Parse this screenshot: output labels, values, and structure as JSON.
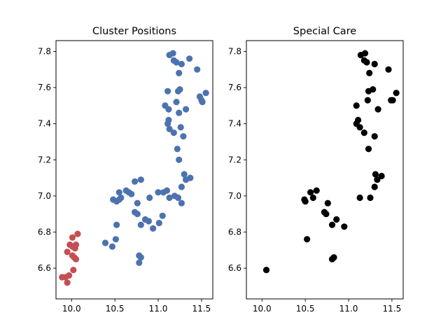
{
  "chart_data": [
    {
      "type": "scatter",
      "title": "Cluster Positions",
      "xlabel": "",
      "ylabel": "",
      "xlim": [
        9.82,
        11.63
      ],
      "ylim": [
        6.43,
        7.86
      ],
      "xticks": [
        "10.0",
        "10.5",
        "11.0",
        "11.5"
      ],
      "xtick_values": [
        10.0,
        10.5,
        11.0,
        11.5
      ],
      "yticks": [
        "6.6",
        "6.8",
        "7.0",
        "7.2",
        "7.4",
        "7.6",
        "7.8"
      ],
      "ytick_values": [
        6.6,
        6.8,
        7.0,
        7.2,
        7.4,
        7.6,
        7.8
      ],
      "grid": false,
      "series": [
        {
          "color": "#c44e52",
          "points": [
            [
              9.89,
              6.55
            ],
            [
              9.93,
              6.55
            ],
            [
              9.95,
              6.52
            ],
            [
              9.97,
              6.56
            ],
            [
              10.02,
              6.59
            ],
            [
              9.95,
              6.69
            ],
            [
              9.98,
              6.73
            ],
            [
              10.01,
              6.72
            ],
            [
              10.04,
              6.71
            ],
            [
              10.05,
              6.73
            ],
            [
              10.01,
              6.67
            ],
            [
              10.03,
              6.66
            ],
            [
              10.05,
              6.65
            ],
            [
              10.01,
              6.77
            ],
            [
              10.07,
              6.79
            ]
          ]
        },
        {
          "color": "#4c72b0",
          "points": [
            [
              10.39,
              6.74
            ],
            [
              10.47,
              6.72
            ],
            [
              10.51,
              6.76
            ],
            [
              10.52,
              6.84
            ],
            [
              10.48,
              6.98
            ],
            [
              10.52,
              6.97
            ],
            [
              10.55,
              6.98
            ],
            [
              10.57,
              6.99
            ],
            [
              10.55,
              7.02
            ],
            [
              10.63,
              7.03
            ],
            [
              10.66,
              7.02
            ],
            [
              10.69,
              7.01
            ],
            [
              10.73,
              7.08
            ],
            [
              10.8,
              7.09
            ],
            [
              10.73,
              6.91
            ],
            [
              10.76,
              6.9
            ],
            [
              10.76,
              6.96
            ],
            [
              10.8,
              6.84
            ],
            [
              10.85,
              6.87
            ],
            [
              10.89,
              6.86
            ],
            [
              10.9,
              6.99
            ],
            [
              10.94,
              6.82
            ],
            [
              11.01,
              6.85
            ],
            [
              11.05,
              6.89
            ],
            [
              10.8,
              6.66
            ],
            [
              10.78,
              6.67
            ],
            [
              10.78,
              6.63
            ],
            [
              11.0,
              7.02
            ],
            [
              11.06,
              7.02
            ],
            [
              11.1,
              7.03
            ],
            [
              11.13,
              6.99
            ],
            [
              11.19,
              7.0
            ],
            [
              11.23,
              6.99
            ],
            [
              11.27,
              6.96
            ],
            [
              11.27,
              7.05
            ],
            [
              11.3,
              7.12
            ],
            [
              11.32,
              7.09
            ],
            [
              11.37,
              7.1
            ],
            [
              11.22,
              7.26
            ],
            [
              11.24,
              7.2
            ],
            [
              11.18,
              7.35
            ],
            [
              11.11,
              7.4
            ],
            [
              11.13,
              7.37
            ],
            [
              11.12,
              7.42
            ],
            [
              11.26,
              7.38
            ],
            [
              11.29,
              7.33
            ],
            [
              11.08,
              7.5
            ],
            [
              11.12,
              7.48
            ],
            [
              11.21,
              7.52
            ],
            [
              11.24,
              7.46
            ],
            [
              11.32,
              7.48
            ],
            [
              11.11,
              7.58
            ],
            [
              11.23,
              7.58
            ],
            [
              11.25,
              7.59
            ],
            [
              11.5,
              7.53
            ],
            [
              11.51,
              7.52
            ],
            [
              11.48,
              7.55
            ],
            [
              11.55,
              7.57
            ],
            [
              11.13,
              7.78
            ],
            [
              11.17,
              7.79
            ],
            [
              11.18,
              7.75
            ],
            [
              11.21,
              7.74
            ],
            [
              11.24,
              7.68
            ],
            [
              11.27,
              7.73
            ],
            [
              11.36,
              7.76
            ],
            [
              11.45,
              7.7
            ]
          ]
        }
      ]
    },
    {
      "type": "scatter",
      "title": "Special Care",
      "xlabel": "",
      "ylabel": "",
      "xlim": [
        9.82,
        11.63
      ],
      "ylim": [
        6.43,
        7.86
      ],
      "xticks": [
        "10.0",
        "10.5",
        "11.0",
        "11.5"
      ],
      "xtick_values": [
        10.0,
        10.5,
        11.0,
        11.5
      ],
      "yticks": [
        "6.6",
        "6.8",
        "7.0",
        "7.2",
        "7.4",
        "7.6",
        "7.8"
      ],
      "ytick_values": [
        6.6,
        6.8,
        7.0,
        7.2,
        7.4,
        7.6,
        7.8
      ],
      "grid": false,
      "series": [
        {
          "color": "#000000",
          "points": [
            [
              10.05,
              6.59
            ],
            [
              10.52,
              6.76
            ],
            [
              10.49,
              6.98
            ],
            [
              10.5,
              6.97
            ],
            [
              10.56,
              7.02
            ],
            [
              10.59,
              6.99
            ],
            [
              10.63,
              7.03
            ],
            [
              10.72,
              6.91
            ],
            [
              10.74,
              6.9
            ],
            [
              10.76,
              6.96
            ],
            [
              10.81,
              6.84
            ],
            [
              10.86,
              6.87
            ],
            [
              10.95,
              6.83
            ],
            [
              10.81,
              6.65
            ],
            [
              10.83,
              6.66
            ],
            [
              11.13,
              6.99
            ],
            [
              11.25,
              6.99
            ],
            [
              11.3,
              7.05
            ],
            [
              11.31,
              7.12
            ],
            [
              11.33,
              7.09
            ],
            [
              11.38,
              7.11
            ],
            [
              11.23,
              7.26
            ],
            [
              11.18,
              7.35
            ],
            [
              11.13,
              7.38
            ],
            [
              11.09,
              7.4
            ],
            [
              11.11,
              7.42
            ],
            [
              11.3,
              7.33
            ],
            [
              11.09,
              7.5
            ],
            [
              11.34,
              7.48
            ],
            [
              11.22,
              7.53
            ],
            [
              11.23,
              7.58
            ],
            [
              11.28,
              7.59
            ],
            [
              11.55,
              7.57
            ],
            [
              11.49,
              7.53
            ],
            [
              11.51,
              7.53
            ],
            [
              11.14,
              7.78
            ],
            [
              11.19,
              7.79
            ],
            [
              11.18,
              7.75
            ],
            [
              11.21,
              7.74
            ],
            [
              11.24,
              7.68
            ],
            [
              11.3,
              7.73
            ],
            [
              11.46,
              7.7
            ]
          ]
        }
      ]
    }
  ]
}
